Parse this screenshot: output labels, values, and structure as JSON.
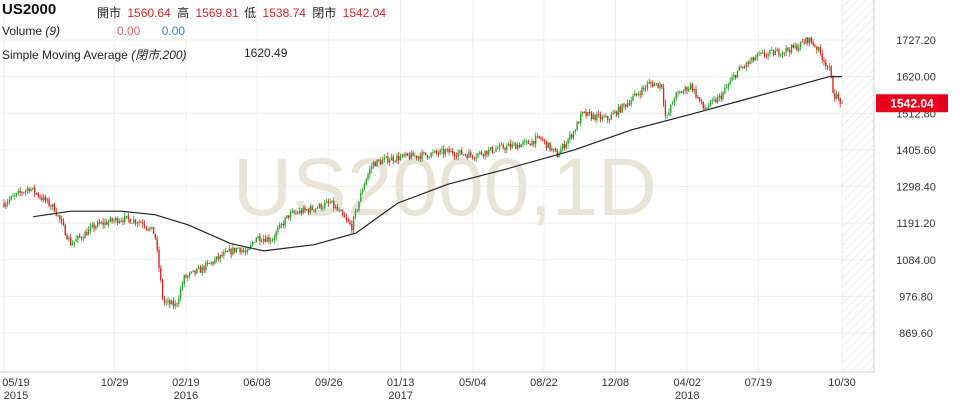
{
  "header": {
    "symbol": "US2000",
    "open_label": "開市",
    "open_value": "1560.64",
    "high_label": "高",
    "high_value": "1569.81",
    "low_label": "低",
    "low_value": "1538.74",
    "close_label": "閉市",
    "close_value": "1542.04",
    "volume_label": "Volume",
    "volume_param": "(9)",
    "volume_value_1": "0.00",
    "volume_value_2": "0.00",
    "sma_label": "Simple Moving Average",
    "sma_param": "(閉市,200)",
    "sma_value": "1620.49"
  },
  "watermark": "US2000,1D",
  "colors": {
    "up": "#2ca02c",
    "down": "#d62728",
    "sma": "#222222",
    "last_price_bg": "#e8001c",
    "grid": "#eeeeee",
    "watermark": "#e8e4d8"
  },
  "chart_data": {
    "type": "candlestick",
    "y_ticks": [
      "1727.20",
      "1620.00",
      "1512.80",
      "1405.60",
      "1298.40",
      "1191.20",
      "1084.00",
      "976.80",
      "869.60"
    ],
    "ylim": [
      820,
      1780
    ],
    "x_ticks": [
      {
        "label": "05/19",
        "year": "2015",
        "t": 0
      },
      {
        "label": "10/29",
        "year": "",
        "t": 0.1321
      },
      {
        "label": "02/19",
        "year": "2016",
        "t": 0.217
      },
      {
        "label": "06/08",
        "year": "",
        "t": 0.3019
      },
      {
        "label": "09/26",
        "year": "",
        "t": 0.3876
      },
      {
        "label": "01/13",
        "year": "2017",
        "t": 0.4733
      },
      {
        "label": "05/04",
        "year": "",
        "t": 0.5594
      },
      {
        "label": "08/22",
        "year": "",
        "t": 0.6443
      },
      {
        "label": "12/08",
        "year": "",
        "t": 0.7296
      },
      {
        "label": "04/02",
        "year": "2018",
        "t": 0.8153
      },
      {
        "label": "07/19",
        "year": "",
        "t": 0.9002
      },
      {
        "label": "10/30",
        "year": "",
        "t": 1.0
      }
    ],
    "price_path": [
      [
        0,
        1250
      ],
      [
        0.03,
        1295
      ],
      [
        0.06,
        1235
      ],
      [
        0.08,
        1130
      ],
      [
        0.11,
        1185
      ],
      [
        0.14,
        1205
      ],
      [
        0.165,
        1195
      ],
      [
        0.18,
        1160
      ],
      [
        0.19,
        960
      ],
      [
        0.205,
        950
      ],
      [
        0.215,
        1030
      ],
      [
        0.235,
        1055
      ],
      [
        0.26,
        1095
      ],
      [
        0.28,
        1120
      ],
      [
        0.29,
        1100
      ],
      [
        0.3,
        1150
      ],
      [
        0.32,
        1145
      ],
      [
        0.34,
        1215
      ],
      [
        0.37,
        1235
      ],
      [
        0.39,
        1250
      ],
      [
        0.415,
        1180
      ],
      [
        0.43,
        1310
      ],
      [
        0.44,
        1365
      ],
      [
        0.46,
        1380
      ],
      [
        0.5,
        1390
      ],
      [
        0.53,
        1400
      ],
      [
        0.56,
        1390
      ],
      [
        0.59,
        1410
      ],
      [
        0.625,
        1425
      ],
      [
        0.64,
        1440
      ],
      [
        0.66,
        1390
      ],
      [
        0.68,
        1460
      ],
      [
        0.69,
        1510
      ],
      [
        0.72,
        1495
      ],
      [
        0.74,
        1535
      ],
      [
        0.77,
        1600
      ],
      [
        0.785,
        1595
      ],
      [
        0.79,
        1490
      ],
      [
        0.8,
        1560
      ],
      [
        0.82,
        1595
      ],
      [
        0.835,
        1525
      ],
      [
        0.855,
        1560
      ],
      [
        0.875,
        1635
      ],
      [
        0.9,
        1680
      ],
      [
        0.92,
        1690
      ],
      [
        0.945,
        1705
      ],
      [
        0.96,
        1730
      ],
      [
        0.97,
        1705
      ],
      [
        0.985,
        1640
      ],
      [
        0.99,
        1570
      ],
      [
        1.0,
        1542
      ]
    ],
    "sma_path": [
      [
        0.035,
        1210
      ],
      [
        0.08,
        1226
      ],
      [
        0.14,
        1226
      ],
      [
        0.18,
        1216
      ],
      [
        0.22,
        1186
      ],
      [
        0.27,
        1132
      ],
      [
        0.31,
        1110
      ],
      [
        0.37,
        1128
      ],
      [
        0.42,
        1162
      ],
      [
        0.47,
        1250
      ],
      [
        0.53,
        1305
      ],
      [
        0.6,
        1350
      ],
      [
        0.68,
        1405
      ],
      [
        0.75,
        1465
      ],
      [
        0.82,
        1510
      ],
      [
        0.88,
        1550
      ],
      [
        0.94,
        1590
      ],
      [
        0.985,
        1620
      ],
      [
        1.0,
        1620
      ]
    ],
    "last_price": 1542.04
  }
}
